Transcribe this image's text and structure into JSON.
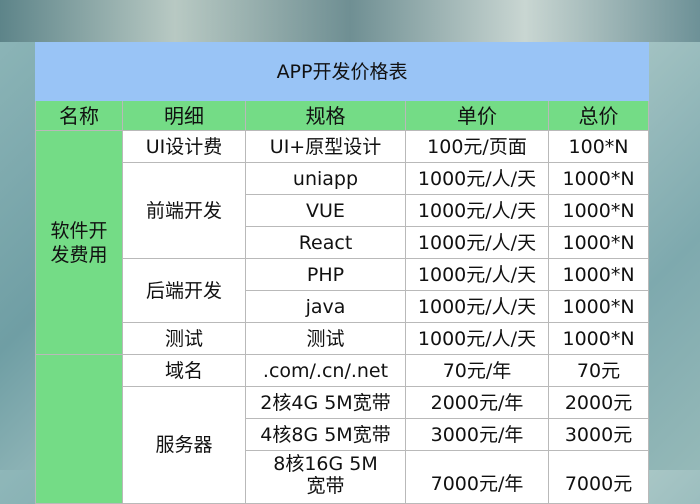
{
  "title": "APP开发价格表",
  "headers": [
    "名称",
    "明细",
    "规格",
    "单价",
    "总价"
  ],
  "group1": {
    "name": "软件开发费用",
    "rows": [
      {
        "detail": "UI设计费",
        "spec": "UI+原型设计",
        "unit": "100元/页面",
        "total": "100*N"
      },
      {
        "detail": "前端开发",
        "spec": "uniapp",
        "unit": "1000元/人/天",
        "total": "1000*N"
      },
      {
        "spec": "VUE",
        "unit": "1000元/人/天",
        "total": "1000*N"
      },
      {
        "spec": "React",
        "unit": "1000元/人/天",
        "total": "1000*N"
      },
      {
        "detail": "后端开发",
        "spec": "PHP",
        "unit": "1000元/人/天",
        "total": "1000*N"
      },
      {
        "spec": "java",
        "unit": "1000元/人/天",
        "total": "1000*N"
      },
      {
        "detail": "测试",
        "spec": "测试",
        "unit": "1000元/人/天",
        "total": "1000*N"
      }
    ]
  },
  "group2": {
    "rows": [
      {
        "detail": "域名",
        "spec": ".com/.cn/.net",
        "unit": "70元/年",
        "total": "70元"
      },
      {
        "detail": "服务器",
        "spec": "2核4G 5M宽带",
        "unit": "2000元/年",
        "total": "2000元"
      },
      {
        "spec": "4核8G 5M宽带",
        "unit": "3000元/年",
        "total": "3000元"
      },
      {
        "spec": "8核16G 5M宽带",
        "unit": "7000元/年",
        "total": "7000元"
      }
    ]
  },
  "colors": {
    "title_bg": "#99c4f6",
    "header_bg": "#74dc86"
  }
}
